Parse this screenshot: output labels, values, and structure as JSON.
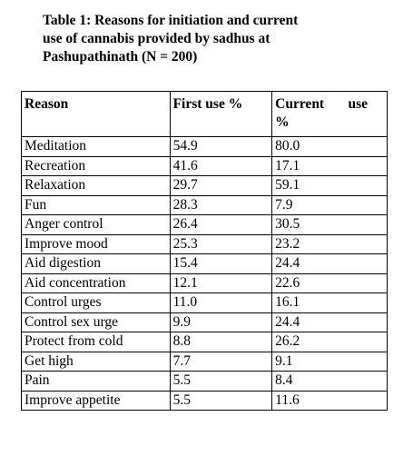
{
  "caption": {
    "line1": "Table 1: Reasons for initiation and current",
    "line2": "use of cannabis provided by sadhus at",
    "line3": "Pashupathinath (N = 200)"
  },
  "table": {
    "headers": {
      "reason": "Reason",
      "first_use": "First use %",
      "current_use_a": "Current",
      "current_use_b": "use",
      "current_use_c": "%"
    },
    "rows": [
      {
        "reason": "Meditation",
        "first": "54.9",
        "current": "80.0"
      },
      {
        "reason": "Recreation",
        "first": "41.6",
        "current": "17.1"
      },
      {
        "reason": "Relaxation",
        "first": "29.7",
        "current": "59.1"
      },
      {
        "reason": "Fun",
        "first": "28.3",
        "current": "7.9"
      },
      {
        "reason": "Anger control",
        "first": "26.4",
        "current": "30.5"
      },
      {
        "reason": "Improve mood",
        "first": "25.3",
        "current": "23.2"
      },
      {
        "reason": "Aid digestion",
        "first": "15.4",
        "current": "24.4"
      },
      {
        "reason": "Aid concentration",
        "first": "12.1",
        "current": "22.6"
      },
      {
        "reason": "Control urges",
        "first": "11.0",
        "current": "16.1"
      },
      {
        "reason": "Control sex urge",
        "first": "9.9",
        "current": "24.4"
      },
      {
        "reason": "Protect from cold",
        "first": "8.8",
        "current": "26.2"
      },
      {
        "reason": "Get high",
        "first": "7.7",
        "current": "9.1"
      },
      {
        "reason": "Pain",
        "first": "5.5",
        "current": "8.4"
      },
      {
        "reason": "Improve appetite",
        "first": "5.5",
        "current": "11.6"
      }
    ]
  }
}
